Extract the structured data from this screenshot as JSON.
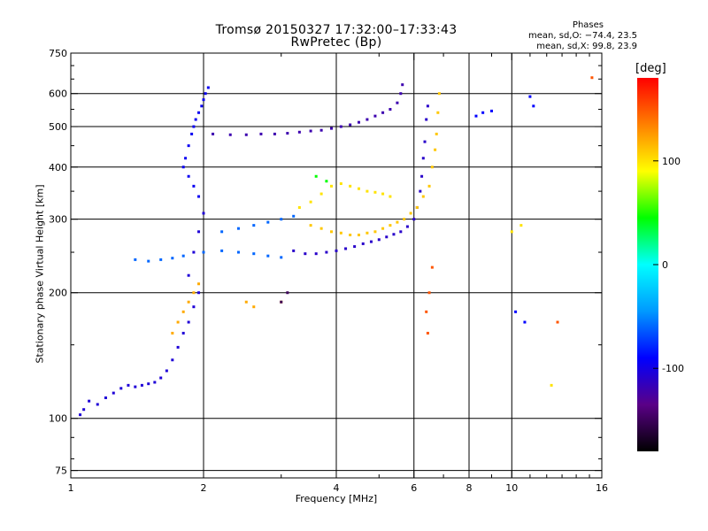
{
  "header": {
    "title": "Tromsø 20150327 17:32:00–17:33:43",
    "subtitle": "RwPretec (Bp)"
  },
  "stats": {
    "heading": "Phases",
    "line_o": "mean, sd,O: −74.4, 23.5",
    "line_x": "mean, sd,X:  99.8, 23.9"
  },
  "chart_data": {
    "type": "scatter",
    "title": "Tromsø 20150327 17:32:00–17:33:43",
    "subtitle": "RwPretec (Bp)",
    "xlabel": "Frequency [MHz]",
    "ylabel": "Stationary phase Virtual Height [km]",
    "xscale": "log",
    "yscale": "log",
    "xlim": [
      1,
      16
    ],
    "ylim": [
      72,
      750
    ],
    "grid": true,
    "x_ticks": [
      1,
      2,
      4,
      6,
      8,
      10,
      16
    ],
    "y_ticks": [
      75,
      100,
      200,
      300,
      400,
      500,
      600,
      750
    ],
    "colorbar": {
      "label": "[deg]",
      "range": [
        -180,
        180
      ],
      "ticks": [
        100,
        0,
        -100
      ],
      "colors": [
        "#000000",
        "#5a0087",
        "#0000ff",
        "#0099ff",
        "#00ffff",
        "#00ff00",
        "#ffff00",
        "#ff8000",
        "#ff0000"
      ]
    },
    "series": [
      {
        "phase": -105,
        "points": [
          [
            1.05,
            102
          ],
          [
            1.07,
            105
          ],
          [
            1.1,
            110
          ],
          [
            1.15,
            108
          ],
          [
            1.2,
            112
          ],
          [
            1.25,
            115
          ],
          [
            1.3,
            118
          ],
          [
            1.35,
            120
          ],
          [
            1.4,
            119
          ],
          [
            1.45,
            120
          ],
          [
            1.5,
            121
          ],
          [
            1.55,
            122
          ],
          [
            1.6,
            125
          ],
          [
            1.65,
            130
          ],
          [
            1.7,
            138
          ],
          [
            1.75,
            148
          ],
          [
            1.8,
            160
          ],
          [
            1.85,
            170
          ],
          [
            1.9,
            185
          ],
          [
            1.95,
            200
          ],
          [
            1.85,
            220
          ],
          [
            1.9,
            250
          ],
          [
            1.95,
            280
          ],
          [
            2.0,
            310
          ]
        ]
      },
      {
        "phase": -95,
        "points": [
          [
            1.8,
            400
          ],
          [
            1.82,
            420
          ],
          [
            1.85,
            450
          ],
          [
            1.88,
            480
          ],
          [
            1.9,
            500
          ],
          [
            1.92,
            520
          ],
          [
            1.95,
            540
          ],
          [
            1.98,
            560
          ],
          [
            2.0,
            580
          ],
          [
            2.02,
            600
          ],
          [
            2.05,
            620
          ],
          [
            1.85,
            380
          ],
          [
            1.9,
            360
          ],
          [
            1.95,
            340
          ]
        ]
      },
      {
        "phase": -120,
        "points": [
          [
            2.1,
            480
          ],
          [
            2.3,
            478
          ],
          [
            2.5,
            478
          ],
          [
            2.7,
            480
          ],
          [
            2.9,
            480
          ],
          [
            3.1,
            482
          ],
          [
            3.3,
            485
          ],
          [
            3.5,
            488
          ],
          [
            3.7,
            490
          ],
          [
            3.9,
            495
          ],
          [
            4.1,
            500
          ],
          [
            4.3,
            505
          ],
          [
            4.5,
            512
          ],
          [
            4.7,
            520
          ],
          [
            4.9,
            530
          ],
          [
            5.1,
            540
          ],
          [
            5.3,
            550
          ],
          [
            5.5,
            570
          ],
          [
            5.6,
            600
          ],
          [
            5.65,
            630
          ]
        ]
      },
      {
        "phase": -110,
        "points": [
          [
            3.2,
            252
          ],
          [
            3.4,
            248
          ],
          [
            3.6,
            248
          ],
          [
            3.8,
            250
          ],
          [
            4.0,
            252
          ],
          [
            4.2,
            255
          ],
          [
            4.4,
            258
          ],
          [
            4.6,
            262
          ],
          [
            4.8,
            265
          ],
          [
            5.0,
            268
          ],
          [
            5.2,
            272
          ],
          [
            5.4,
            276
          ],
          [
            5.6,
            280
          ],
          [
            5.8,
            288
          ],
          [
            6.0,
            300
          ],
          [
            6.1,
            320
          ],
          [
            6.2,
            350
          ],
          [
            6.25,
            380
          ],
          [
            6.3,
            420
          ],
          [
            6.35,
            460
          ],
          [
            6.4,
            520
          ],
          [
            6.45,
            560
          ]
        ]
      },
      {
        "phase": -60,
        "points": [
          [
            1.4,
            240
          ],
          [
            1.5,
            238
          ],
          [
            1.6,
            240
          ],
          [
            1.7,
            242
          ],
          [
            1.8,
            245
          ],
          [
            2.0,
            250
          ],
          [
            2.2,
            252
          ],
          [
            2.4,
            250
          ],
          [
            2.6,
            248
          ],
          [
            2.8,
            245
          ],
          [
            3.0,
            243
          ],
          [
            2.2,
            280
          ],
          [
            2.4,
            285
          ],
          [
            2.6,
            290
          ],
          [
            2.8,
            295
          ],
          [
            3.0,
            300
          ],
          [
            3.2,
            305
          ]
        ]
      },
      {
        "phase": 110,
        "points": [
          [
            3.5,
            290
          ],
          [
            3.7,
            285
          ],
          [
            3.9,
            280
          ],
          [
            4.1,
            278
          ],
          [
            4.3,
            275
          ],
          [
            4.5,
            275
          ],
          [
            4.7,
            278
          ],
          [
            4.9,
            280
          ],
          [
            5.1,
            285
          ],
          [
            5.3,
            290
          ],
          [
            5.5,
            295
          ],
          [
            5.7,
            300
          ],
          [
            5.9,
            310
          ],
          [
            6.1,
            320
          ],
          [
            6.3,
            340
          ],
          [
            6.5,
            360
          ],
          [
            6.6,
            400
          ],
          [
            6.7,
            440
          ],
          [
            6.75,
            480
          ],
          [
            6.8,
            540
          ],
          [
            6.85,
            600
          ]
        ]
      },
      {
        "phase": 100,
        "points": [
          [
            3.3,
            320
          ],
          [
            3.5,
            330
          ],
          [
            3.7,
            345
          ],
          [
            3.9,
            360
          ],
          [
            4.1,
            365
          ],
          [
            4.3,
            360
          ],
          [
            4.5,
            355
          ],
          [
            4.7,
            350
          ],
          [
            4.9,
            348
          ],
          [
            5.1,
            345
          ],
          [
            5.3,
            340
          ]
        ]
      },
      {
        "phase": 120,
        "points": [
          [
            1.7,
            160
          ],
          [
            1.75,
            170
          ],
          [
            1.8,
            180
          ],
          [
            1.85,
            190
          ],
          [
            1.9,
            200
          ],
          [
            1.95,
            210
          ],
          [
            2.5,
            190
          ],
          [
            2.6,
            185
          ],
          [
            3.0,
            190
          ]
        ]
      },
      {
        "phase": 150,
        "points": [
          [
            6.4,
            180
          ],
          [
            6.5,
            200
          ],
          [
            6.6,
            230
          ],
          [
            6.45,
            160
          ],
          [
            12.7,
            170
          ],
          [
            15.2,
            655
          ]
        ]
      },
      {
        "phase": 45,
        "points": [
          [
            3.6,
            380
          ],
          [
            3.8,
            370
          ]
        ]
      },
      {
        "phase": -150,
        "points": [
          [
            3.0,
            190
          ],
          [
            3.1,
            200
          ]
        ]
      },
      {
        "phase": -90,
        "points": [
          [
            10.2,
            180
          ],
          [
            10.7,
            170
          ],
          [
            11.0,
            590
          ],
          [
            11.2,
            560
          ],
          [
            8.3,
            530
          ],
          [
            8.6,
            540
          ],
          [
            9.0,
            545
          ]
        ]
      },
      {
        "phase": 100,
        "points": [
          [
            12.3,
            120
          ],
          [
            10.5,
            290
          ],
          [
            10.0,
            280
          ]
        ]
      }
    ]
  }
}
